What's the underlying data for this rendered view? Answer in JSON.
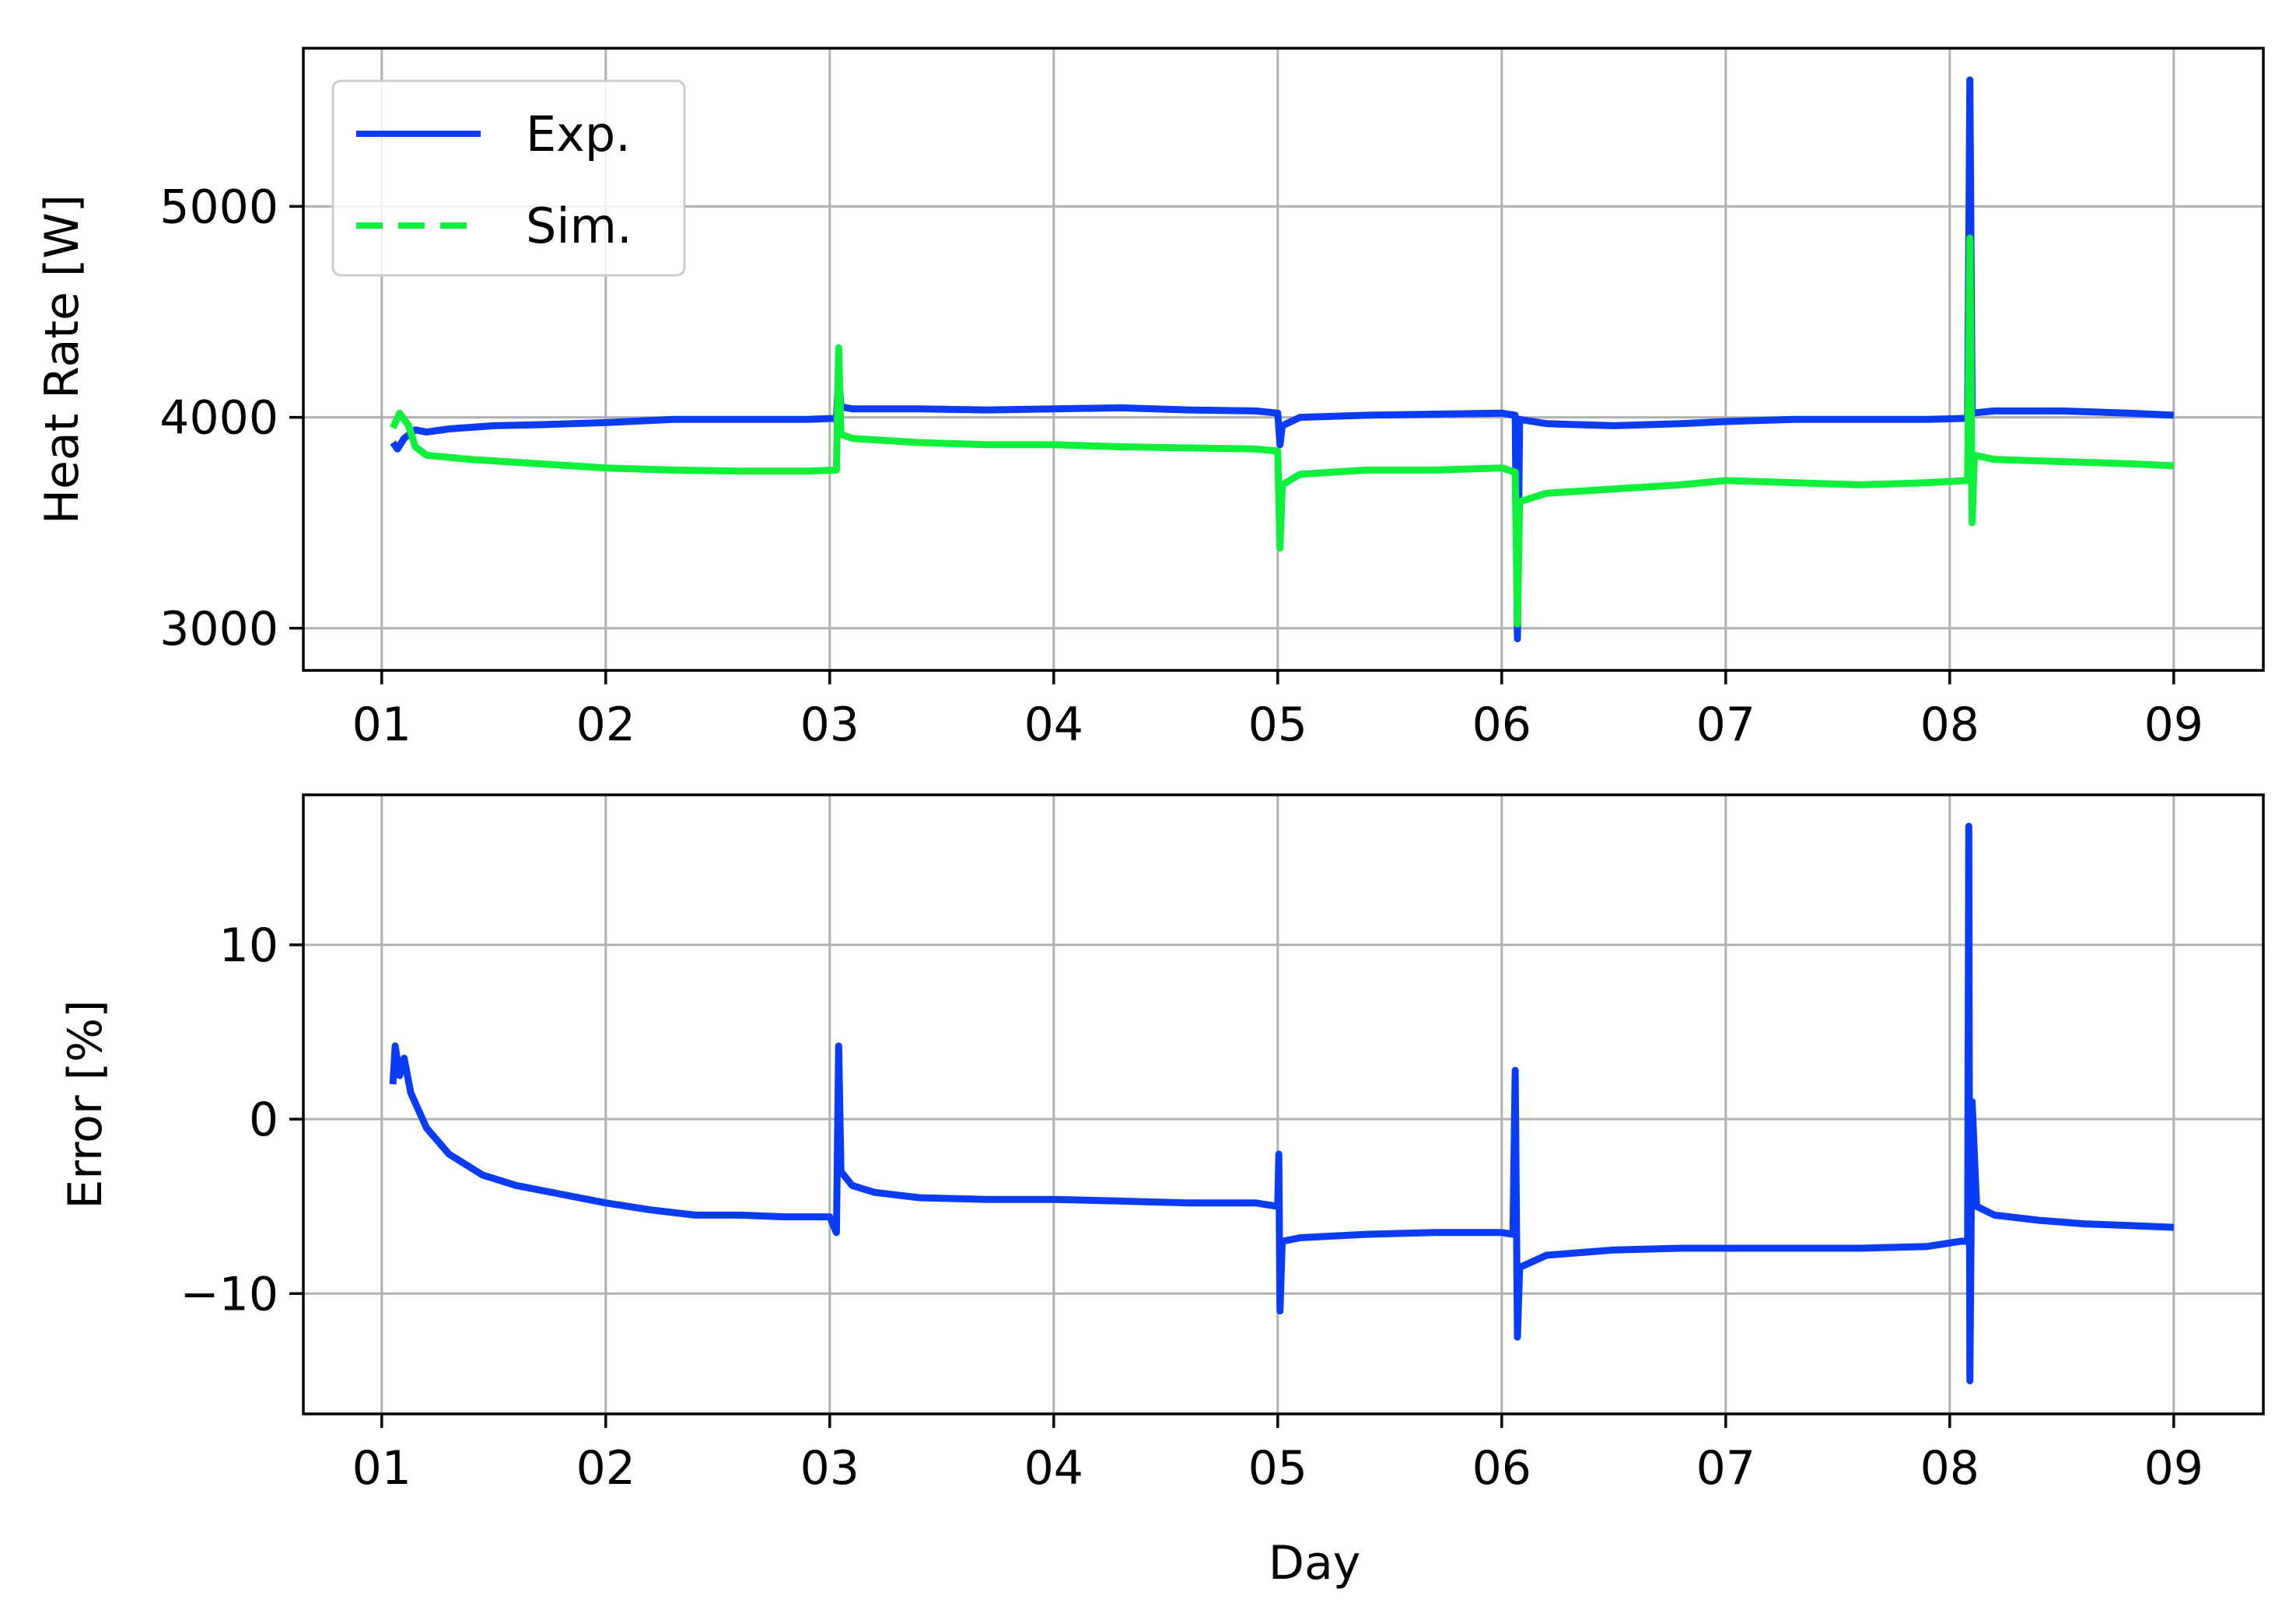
{
  "chart_data": [
    {
      "type": "line",
      "ylabel": "Heat Rate [W]",
      "xlabel": "",
      "x_ticks": [
        "01",
        "02",
        "03",
        "04",
        "05",
        "06",
        "07",
        "08",
        "09"
      ],
      "y_ticks": [
        3000,
        4000,
        5000
      ],
      "xlim": [
        0.65,
        9.4
      ],
      "ylim": [
        2800,
        5750
      ],
      "grid": true,
      "legend": {
        "placement": "top-left",
        "entries": [
          {
            "name": "Exp.",
            "style": "solid",
            "color": "#0a3cf5"
          },
          {
            "name": "Sim.",
            "style": "dashed",
            "color": "#0ff03c"
          }
        ]
      },
      "series": [
        {
          "name": "Exp.",
          "color": "#0a3cf5",
          "points": [
            [
              1.05,
              3880
            ],
            [
              1.07,
              3850
            ],
            [
              1.1,
              3900
            ],
            [
              1.15,
              3940
            ],
            [
              1.2,
              3930
            ],
            [
              1.3,
              3945
            ],
            [
              1.5,
              3960
            ],
            [
              1.7,
              3965
            ],
            [
              2.0,
              3975
            ],
            [
              2.3,
              3990
            ],
            [
              2.6,
              3990
            ],
            [
              2.9,
              3990
            ],
            [
              3.03,
              3995
            ],
            [
              3.04,
              4200
            ],
            [
              3.05,
              4050
            ],
            [
              3.1,
              4040
            ],
            [
              3.4,
              4040
            ],
            [
              3.7,
              4035
            ],
            [
              4.0,
              4040
            ],
            [
              4.3,
              4045
            ],
            [
              4.6,
              4035
            ],
            [
              4.9,
              4030
            ],
            [
              5.0,
              4020
            ],
            [
              5.01,
              3870
            ],
            [
              5.02,
              3960
            ],
            [
              5.1,
              4000
            ],
            [
              5.4,
              4010
            ],
            [
              5.7,
              4015
            ],
            [
              6.0,
              4020
            ],
            [
              6.06,
              4010
            ],
            [
              6.07,
              2950
            ],
            [
              6.08,
              3990
            ],
            [
              6.2,
              3970
            ],
            [
              6.5,
              3960
            ],
            [
              6.8,
              3970
            ],
            [
              7.0,
              3980
            ],
            [
              7.3,
              3990
            ],
            [
              7.6,
              3990
            ],
            [
              7.9,
              3990
            ],
            [
              8.08,
              3995
            ],
            [
              8.09,
              5600
            ],
            [
              8.1,
              4020
            ],
            [
              8.2,
              4030
            ],
            [
              8.5,
              4030
            ],
            [
              8.8,
              4020
            ],
            [
              9.0,
              4010
            ]
          ]
        },
        {
          "name": "Sim.",
          "color": "#0ff03c",
          "points": [
            [
              1.05,
              3950
            ],
            [
              1.08,
              4020
            ],
            [
              1.12,
              3960
            ],
            [
              1.15,
              3860
            ],
            [
              1.2,
              3820
            ],
            [
              1.4,
              3800
            ],
            [
              1.7,
              3780
            ],
            [
              2.0,
              3760
            ],
            [
              2.3,
              3750
            ],
            [
              2.6,
              3745
            ],
            [
              2.9,
              3745
            ],
            [
              3.03,
              3750
            ],
            [
              3.04,
              4330
            ],
            [
              3.05,
              3920
            ],
            [
              3.1,
              3900
            ],
            [
              3.4,
              3880
            ],
            [
              3.7,
              3870
            ],
            [
              4.0,
              3870
            ],
            [
              4.3,
              3860
            ],
            [
              4.6,
              3855
            ],
            [
              4.9,
              3850
            ],
            [
              5.0,
              3840
            ],
            [
              5.01,
              3380
            ],
            [
              5.02,
              3680
            ],
            [
              5.1,
              3730
            ],
            [
              5.4,
              3750
            ],
            [
              5.7,
              3750
            ],
            [
              6.0,
              3760
            ],
            [
              6.06,
              3740
            ],
            [
              6.07,
              3020
            ],
            [
              6.08,
              3600
            ],
            [
              6.2,
              3640
            ],
            [
              6.5,
              3660
            ],
            [
              6.8,
              3680
            ],
            [
              7.0,
              3700
            ],
            [
              7.3,
              3690
            ],
            [
              7.6,
              3680
            ],
            [
              7.9,
              3690
            ],
            [
              8.08,
              3700
            ],
            [
              8.09,
              4850
            ],
            [
              8.1,
              3500
            ],
            [
              8.11,
              3820
            ],
            [
              8.2,
              3800
            ],
            [
              8.5,
              3790
            ],
            [
              8.8,
              3780
            ],
            [
              9.0,
              3770
            ]
          ]
        }
      ]
    },
    {
      "type": "line",
      "ylabel": "Error [%]",
      "xlabel": "Day",
      "x_ticks": [
        "01",
        "02",
        "03",
        "04",
        "05",
        "06",
        "07",
        "08",
        "09"
      ],
      "y_ticks": [
        -10,
        0,
        10
      ],
      "y_tick_labels": [
        "−10",
        "0",
        "10"
      ],
      "xlim": [
        0.65,
        9.4
      ],
      "ylim": [
        -16.9,
        18.6
      ],
      "grid": true,
      "series": [
        {
          "name": "",
          "color": "#0a3cf5",
          "points": [
            [
              1.05,
              2.0
            ],
            [
              1.06,
              4.2
            ],
            [
              1.08,
              2.5
            ],
            [
              1.1,
              3.5
            ],
            [
              1.13,
              1.5
            ],
            [
              1.2,
              -0.5
            ],
            [
              1.3,
              -2.0
            ],
            [
              1.45,
              -3.2
            ],
            [
              1.6,
              -3.8
            ],
            [
              1.8,
              -4.3
            ],
            [
              2.0,
              -4.8
            ],
            [
              2.2,
              -5.2
            ],
            [
              2.4,
              -5.5
            ],
            [
              2.6,
              -5.5
            ],
            [
              2.8,
              -5.6
            ],
            [
              3.0,
              -5.6
            ],
            [
              3.03,
              -6.5
            ],
            [
              3.04,
              4.2
            ],
            [
              3.05,
              -3.0
            ],
            [
              3.1,
              -3.8
            ],
            [
              3.2,
              -4.2
            ],
            [
              3.4,
              -4.5
            ],
            [
              3.7,
              -4.6
            ],
            [
              4.0,
              -4.6
            ],
            [
              4.3,
              -4.7
            ],
            [
              4.6,
              -4.8
            ],
            [
              4.9,
              -4.8
            ],
            [
              5.0,
              -5.0
            ],
            [
              5.005,
              -2.0
            ],
            [
              5.01,
              -11.0
            ],
            [
              5.02,
              -7.0
            ],
            [
              5.1,
              -6.8
            ],
            [
              5.4,
              -6.6
            ],
            [
              5.7,
              -6.5
            ],
            [
              6.0,
              -6.5
            ],
            [
              6.05,
              -6.6
            ],
            [
              6.06,
              2.8
            ],
            [
              6.07,
              -12.5
            ],
            [
              6.08,
              -8.5
            ],
            [
              6.2,
              -7.8
            ],
            [
              6.5,
              -7.5
            ],
            [
              6.8,
              -7.4
            ],
            [
              7.0,
              -7.4
            ],
            [
              7.3,
              -7.4
            ],
            [
              7.6,
              -7.4
            ],
            [
              7.9,
              -7.3
            ],
            [
              8.05,
              -7.0
            ],
            [
              8.08,
              -7.0
            ],
            [
              8.085,
              16.8
            ],
            [
              8.09,
              -15.0
            ],
            [
              8.1,
              1.0
            ],
            [
              8.12,
              -5.0
            ],
            [
              8.2,
              -5.5
            ],
            [
              8.4,
              -5.8
            ],
            [
              8.6,
              -6.0
            ],
            [
              8.8,
              -6.1
            ],
            [
              9.0,
              -6.2
            ]
          ]
        }
      ]
    }
  ]
}
